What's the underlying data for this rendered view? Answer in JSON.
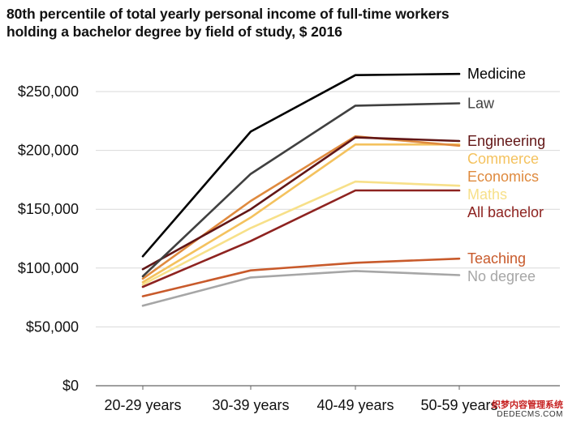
{
  "chart_data": {
    "type": "line",
    "title": "80th percentile of total yearly personal income of full-time workers holding a bachelor degree by field of study, $ 2016",
    "title_lines": [
      "80th percentile of total yearly personal income of full-time workers",
      "holding a bachelor degree by field of study, $ 2016"
    ],
    "xlabel": "",
    "ylabel": "",
    "categories": [
      "20-29 years",
      "30-39 years",
      "40-49 years",
      "50-59 years"
    ],
    "ylim": [
      0,
      250000
    ],
    "yticks": [
      0,
      50000,
      100000,
      150000,
      200000,
      250000
    ],
    "ytick_labels": [
      "$0",
      "$50,000",
      "$100,000",
      "$150,000",
      "$200,000",
      "$250,000"
    ],
    "grid": true,
    "legend": "inline-right",
    "series": [
      {
        "name": "No degree",
        "color": "#a6a6a6",
        "values": [
          68000,
          92000,
          97500,
          94000
        ]
      },
      {
        "name": "Teaching",
        "color": "#c85a2b",
        "values": [
          76000,
          98000,
          104500,
          108000
        ]
      },
      {
        "name": "All bachelor",
        "color": "#8e2320",
        "values": [
          84000,
          123000,
          166000,
          166000
        ]
      },
      {
        "name": "Maths",
        "color": "#f7e089",
        "values": [
          86000,
          134000,
          173500,
          170000
        ]
      },
      {
        "name": "Commerce",
        "color": "#f4c25e",
        "values": [
          88000,
          143000,
          205000,
          205000
        ]
      },
      {
        "name": "Economics",
        "color": "#df8a3e",
        "values": [
          91000,
          157000,
          212000,
          204000
        ]
      },
      {
        "name": "Engineering",
        "color": "#621616",
        "values": [
          99000,
          150000,
          211000,
          208000
        ]
      },
      {
        "name": "Law",
        "color": "#404040",
        "values": [
          93000,
          180000,
          238000,
          240000
        ]
      },
      {
        "name": "Medicine",
        "color": "#000000",
        "values": [
          110000,
          216000,
          264000,
          265000
        ]
      }
    ]
  },
  "watermark": {
    "line1": "织梦内容管理系统",
    "line2": "DEDECMS.COM"
  }
}
